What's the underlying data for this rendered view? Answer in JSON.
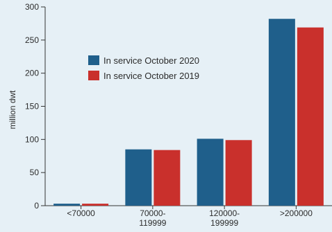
{
  "chart_data": {
    "type": "bar",
    "title": "",
    "xlabel": "",
    "ylabel": "million dwt",
    "ylim": [
      0,
      300
    ],
    "yticks": [
      0,
      50,
      100,
      150,
      200,
      250,
      300
    ],
    "categories": [
      [
        "<70000"
      ],
      [
        "70000-",
        "119999"
      ],
      [
        "120000-",
        "199999"
      ],
      [
        ">200000"
      ]
    ],
    "series": [
      {
        "name": "In service October 2020",
        "color": "#1f5f8b",
        "values": [
          3,
          85,
          101,
          282
        ]
      },
      {
        "name": "In service October 2019",
        "color": "#c9302c",
        "values": [
          3,
          84,
          99,
          269
        ]
      }
    ],
    "legend_position": "upper-left",
    "grid": false
  }
}
